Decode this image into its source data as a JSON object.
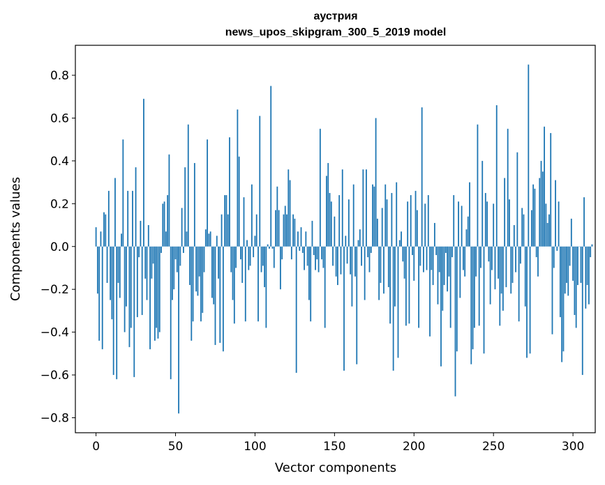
{
  "chart_data": {
    "type": "bar",
    "title_line1": "аустрия",
    "title_line2": "news_upos_skipgram_300_5_2019 model",
    "xlabel": "Vector components",
    "ylabel": "Components values",
    "xlim": [
      -13,
      314
    ],
    "ylim": [
      -0.87,
      0.94
    ],
    "xticks": [
      0,
      50,
      100,
      150,
      200,
      250,
      300
    ],
    "xtick_labels": [
      "0",
      "50",
      "100",
      "150",
      "200",
      "250",
      "300"
    ],
    "yticks": [
      0.8,
      0.6,
      0.4,
      0.2,
      0.0,
      -0.2,
      -0.4,
      -0.6,
      -0.8
    ],
    "ytick_labels": [
      "0.8",
      "0.6",
      "0.4",
      "0.2",
      "0.0",
      "−0.2",
      "−0.4",
      "−0.6",
      "−0.8"
    ],
    "bar_color": "#1f77b4",
    "values": [
      0.09,
      -0.22,
      -0.44,
      0.07,
      -0.48,
      0.16,
      0.15,
      -0.17,
      0.26,
      -0.25,
      -0.34,
      -0.6,
      0.32,
      -0.62,
      -0.17,
      -0.24,
      0.06,
      0.5,
      -0.4,
      -0.28,
      0.26,
      -0.47,
      -0.38,
      0.26,
      -0.61,
      0.37,
      -0.33,
      -0.05,
      0.12,
      -0.32,
      0.69,
      -0.15,
      -0.25,
      0.1,
      -0.48,
      -0.15,
      -0.08,
      -0.44,
      -0.38,
      -0.43,
      -0.4,
      -0.03,
      0.2,
      0.21,
      0.07,
      0.24,
      0.43,
      -0.62,
      -0.25,
      -0.2,
      -0.06,
      -0.12,
      -0.78,
      -0.09,
      0.18,
      -0.03,
      0.37,
      0.07,
      0.57,
      -0.18,
      -0.44,
      -0.35,
      0.39,
      -0.21,
      -0.23,
      -0.14,
      -0.35,
      -0.31,
      -0.12,
      0.08,
      0.5,
      0.06,
      0.07,
      -0.24,
      -0.27,
      -0.46,
      0.05,
      -0.15,
      -0.45,
      0.15,
      -0.49,
      0.24,
      0.24,
      0.15,
      0.51,
      -0.12,
      -0.25,
      -0.36,
      -0.1,
      0.64,
      0.42,
      -0.06,
      -0.17,
      0.23,
      -0.35,
      0.03,
      -0.11,
      -0.09,
      0.29,
      -0.05,
      0.05,
      0.15,
      -0.35,
      0.61,
      -0.12,
      -0.09,
      -0.19,
      -0.38,
      0.01,
      -0.01,
      0.75,
      -0.01,
      -0.1,
      0.17,
      0.28,
      0.17,
      -0.2,
      -0.06,
      0.15,
      0.19,
      0.15,
      0.36,
      0.31,
      -0.06,
      0.15,
      0.13,
      -0.59,
      0.07,
      -0.02,
      0.09,
      -0.03,
      -0.11,
      0.07,
      -0.09,
      -0.25,
      -0.35,
      0.12,
      -0.04,
      -0.11,
      -0.06,
      -0.12,
      0.55,
      -0.06,
      -0.1,
      -0.38,
      0.33,
      0.39,
      0.25,
      0.21,
      -0.09,
      0.14,
      -0.14,
      -0.18,
      0.24,
      -0.13,
      0.36,
      -0.58,
      0.05,
      -0.08,
      0.22,
      -0.13,
      -0.28,
      0.29,
      -0.14,
      -0.55,
      0.03,
      0.08,
      -0.09,
      0.36,
      -0.25,
      0.36,
      -0.05,
      -0.12,
      -0.03,
      0.29,
      0.28,
      0.6,
      0.13,
      -0.25,
      -0.17,
      0.18,
      -0.22,
      0.29,
      0.22,
      -0.19,
      -0.36,
      0.25,
      -0.58,
      -0.28,
      0.3,
      -0.52,
      0.03,
      0.07,
      -0.07,
      -0.15,
      -0.37,
      0.21,
      -0.36,
      0.24,
      -0.04,
      -0.16,
      0.26,
      0.17,
      -0.38,
      -0.09,
      0.65,
      -0.12,
      0.2,
      -0.11,
      0.24,
      -0.42,
      -0.11,
      -0.18,
      0.11,
      -0.04,
      -0.27,
      -0.12,
      -0.56,
      -0.3,
      -0.18,
      -0.03,
      -0.21,
      -0.14,
      -0.38,
      -0.05,
      0.24,
      -0.7,
      -0.49,
      0.21,
      -0.24,
      0.19,
      -0.11,
      -0.14,
      0.08,
      0.14,
      0.3,
      -0.55,
      -0.48,
      -0.38,
      -0.14,
      0.57,
      -0.37,
      -0.1,
      0.4,
      -0.5,
      0.25,
      0.21,
      -0.07,
      -0.27,
      -0.11,
      0.2,
      -0.2,
      0.66,
      -0.15,
      -0.37,
      -0.22,
      -0.3,
      0.32,
      -0.19,
      0.55,
      0.22,
      -0.22,
      -0.17,
      0.1,
      -0.12,
      0.44,
      -0.35,
      -0.08,
      0.18,
      0.15,
      -0.28,
      -0.52,
      0.85,
      -0.5,
      0.17,
      0.29,
      0.27,
      -0.05,
      -0.14,
      0.32,
      0.4,
      0.35,
      0.56,
      0.2,
      0.11,
      0.15,
      0.53,
      -0.41,
      -0.1,
      0.31,
      -0.02,
      0.21,
      -0.33,
      -0.54,
      -0.49,
      -0.22,
      -0.17,
      -0.23,
      -0.09,
      0.13,
      -0.16,
      -0.32,
      -0.38,
      -0.18,
      0.0,
      -0.17,
      -0.6,
      0.23,
      -0.29,
      -0.18,
      -0.27,
      -0.05,
      0.01
    ]
  }
}
